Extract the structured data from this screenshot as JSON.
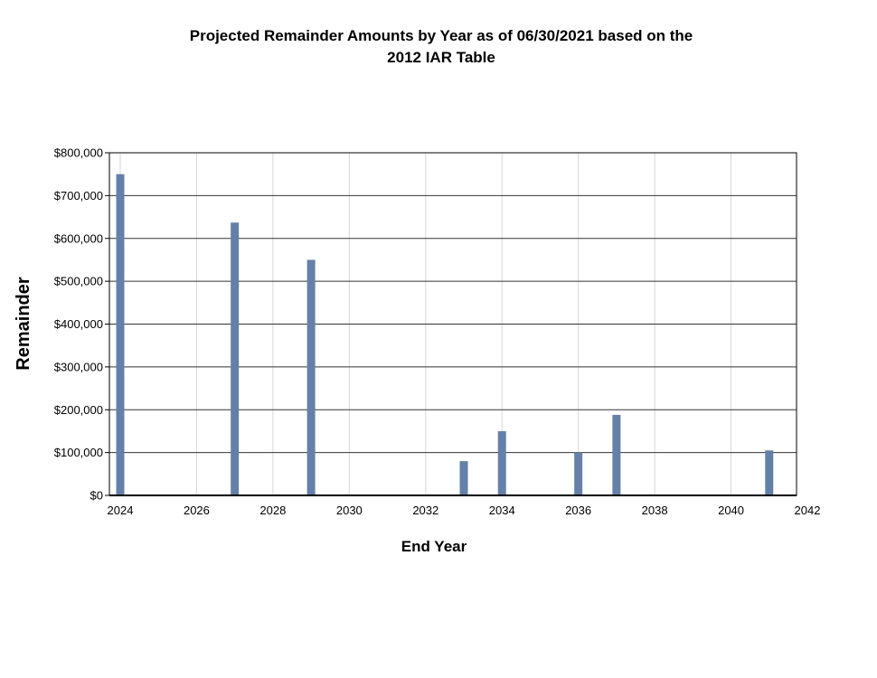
{
  "chart_data": {
    "type": "bar",
    "title_line1": "Projected Remainder Amounts by Year as of 06/30/2021 based on the",
    "title_line2": "2012 IAR Table",
    "xlabel": "End Year",
    "ylabel": "Remainder",
    "xlim": [
      2024,
      2042
    ],
    "x_ticks": [
      "2024",
      "2026",
      "2028",
      "2030",
      "2032",
      "2034",
      "2036",
      "2038",
      "2040",
      "2042"
    ],
    "ylim": [
      0,
      800000
    ],
    "y_ticks": [
      "$0",
      "$100,000",
      "$200,000",
      "$300,000",
      "$400,000",
      "$500,000",
      "$600,000",
      "$700,000",
      "$800,000"
    ],
    "x": [
      2024,
      2027,
      2029,
      2033,
      2034,
      2036,
      2037,
      2041
    ],
    "values": [
      750000,
      637000,
      550000,
      80000,
      150000,
      100000,
      188000,
      105000
    ],
    "grid": true,
    "legend": "none",
    "bar_color": "#6580a8"
  }
}
